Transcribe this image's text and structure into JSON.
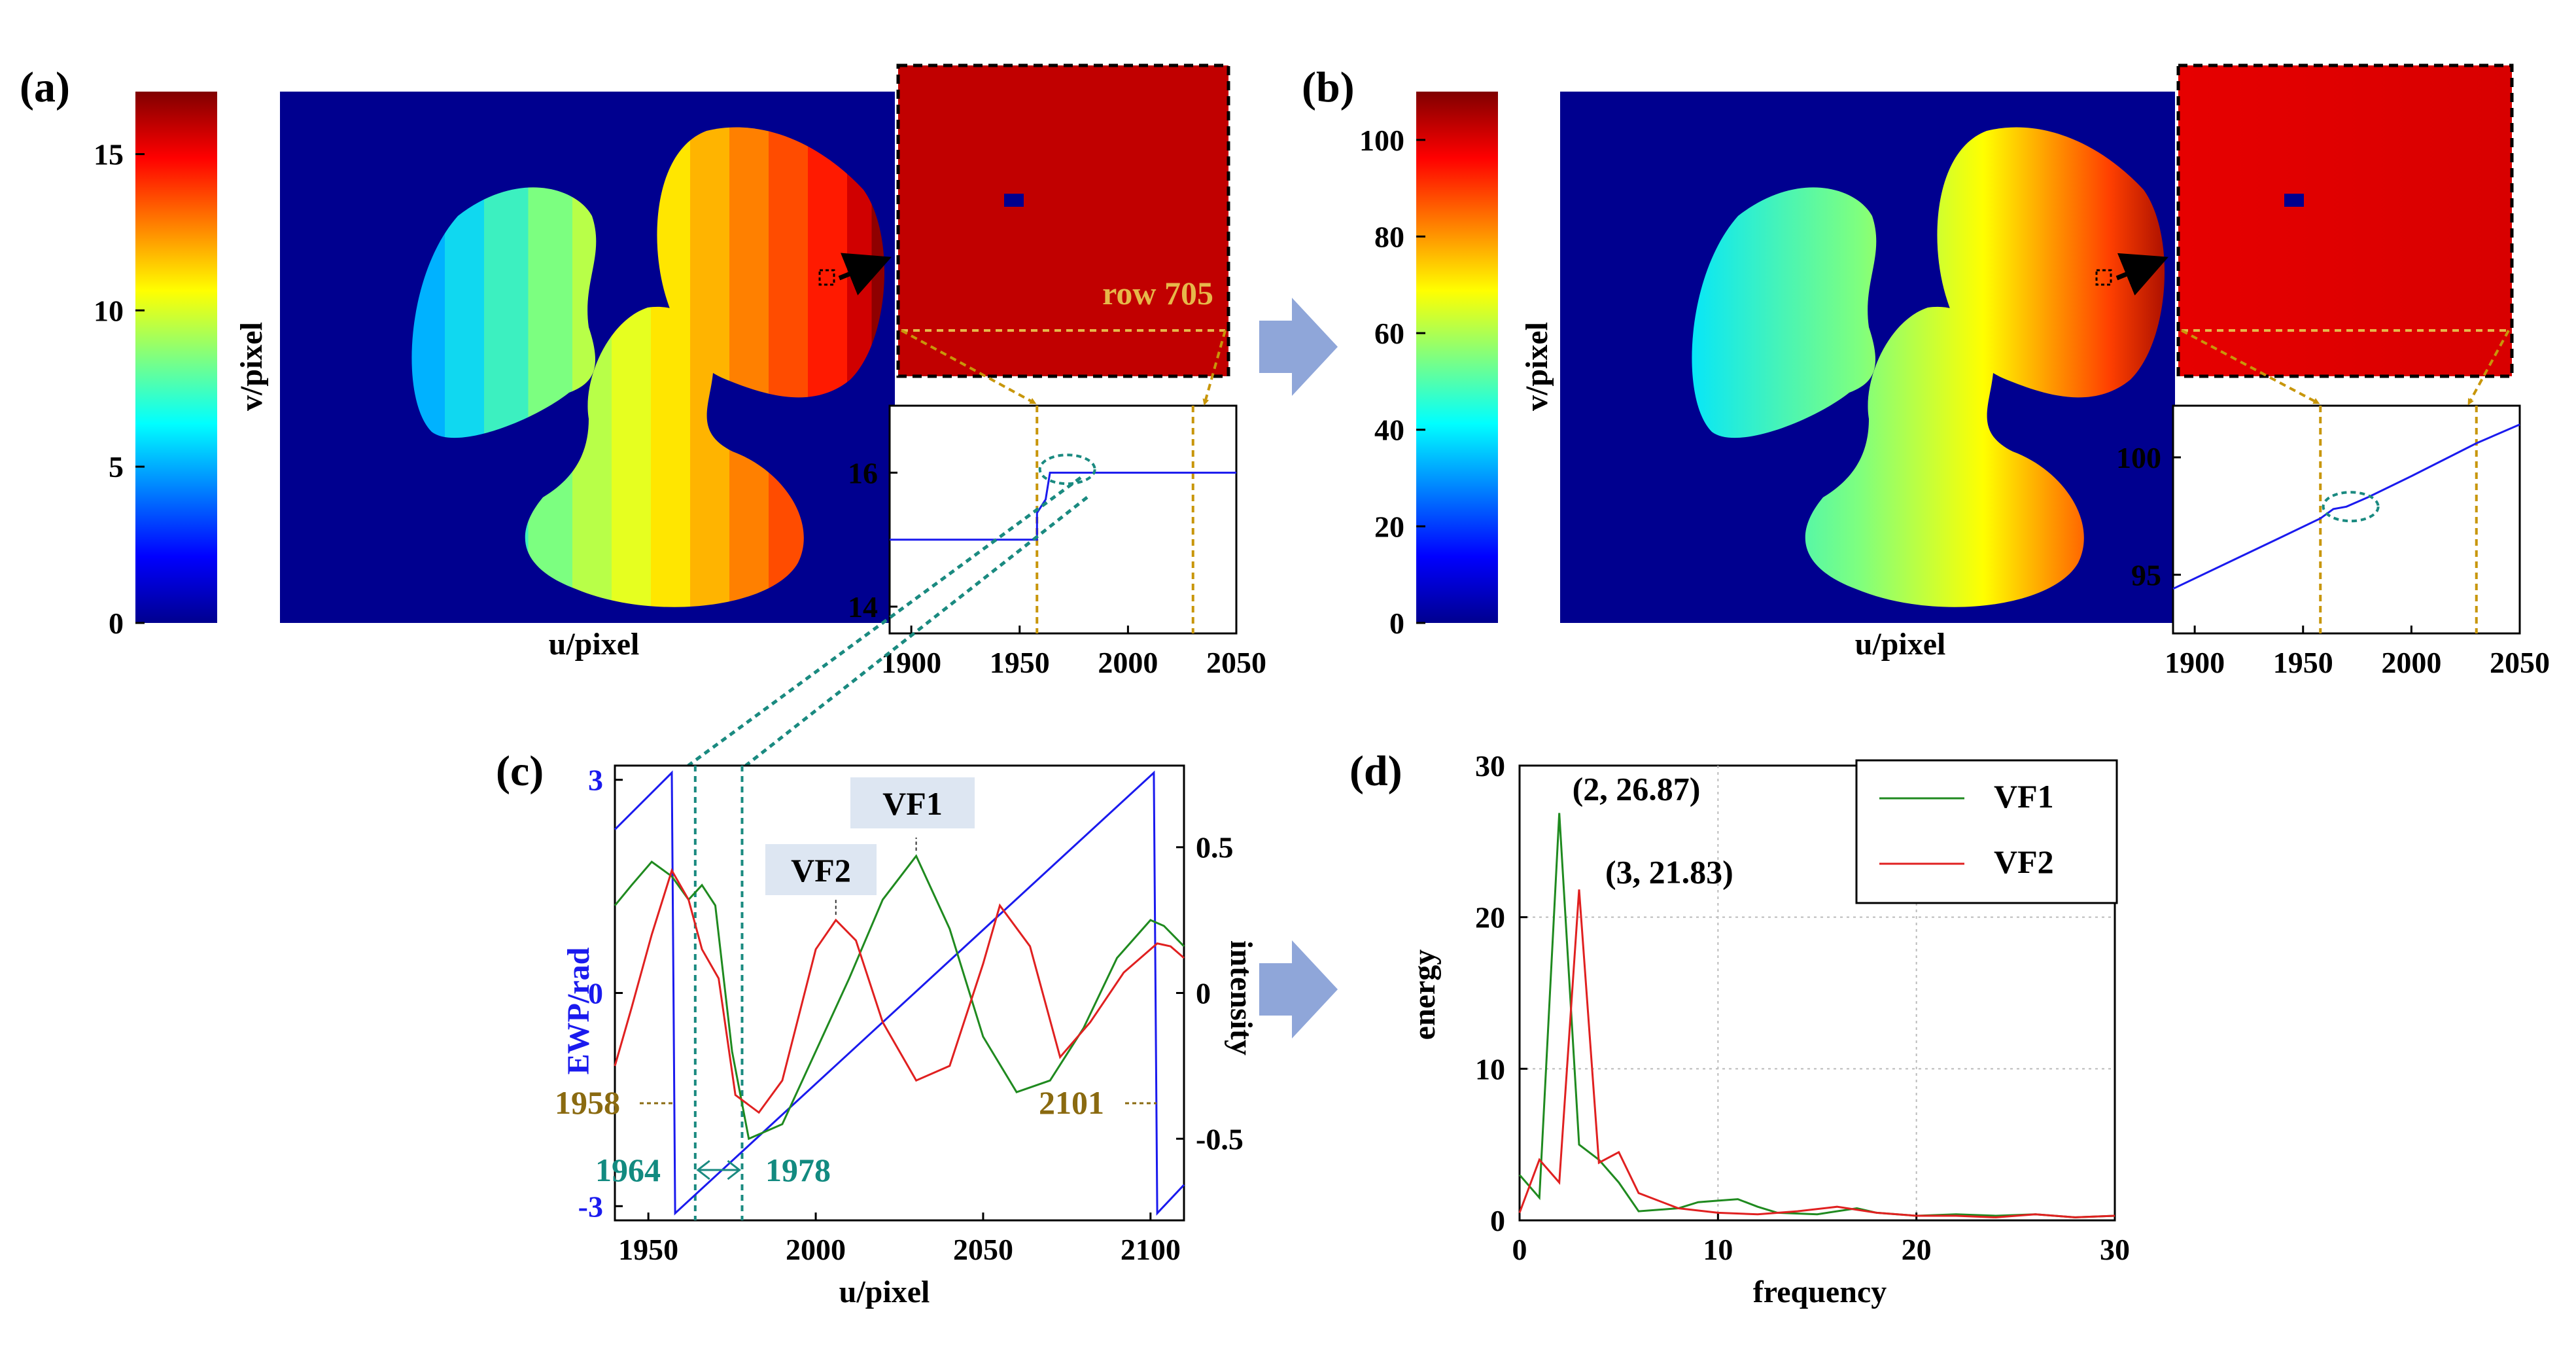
{
  "panel_labels": {
    "a": "(a)",
    "b": "(b)",
    "c": "(c)",
    "d": "(d)"
  },
  "colors": {
    "background_blue": "#00008f",
    "wrap_line": "#1a1aee",
    "guide_gold": "#c8960a",
    "guide_teal": "#1a8a80",
    "vf1": "#1f8a1f",
    "vf2": "#e02020",
    "arrow": "#8fa6d9",
    "label_box": "#dde6f2",
    "brown_text": "#8a6a10",
    "teal_text": "#128a80"
  },
  "chart_data": [
    {
      "id": "a",
      "type": "heatmap",
      "colormap": "jet",
      "colorbar": {
        "min": 0,
        "max": 17,
        "ticks": [
          0,
          5,
          10,
          15
        ]
      },
      "xlabel": "u/pixel",
      "ylabel": "v/pixel",
      "zoom_annotation": "row 705",
      "inset": {
        "type": "line",
        "x": [
          1890,
          1958,
          1958,
          1962,
          1964,
          1980,
          2050
        ],
        "y": [
          15,
          15,
          15.4,
          15.6,
          16,
          16,
          16
        ],
        "xlim": [
          1890,
          2050
        ],
        "ylim": [
          13.6,
          17
        ],
        "xticks": [
          1900,
          1950,
          2000,
          2050
        ],
        "yticks": [
          14,
          16
        ],
        "guides_x": [
          1958,
          2030
        ]
      }
    },
    {
      "id": "b",
      "type": "heatmap",
      "colormap": "jet",
      "colorbar": {
        "min": 0,
        "max": 110,
        "ticks": [
          0,
          20,
          40,
          60,
          80,
          100
        ]
      },
      "xlabel": "u/pixel",
      "ylabel": "v/pixel",
      "inset": {
        "type": "line",
        "x": [
          1890,
          1940,
          1958,
          1964,
          1970,
          1980,
          2000,
          2030,
          2050
        ],
        "y": [
          94.4,
          96.6,
          97.4,
          97.8,
          97.9,
          98.3,
          99.2,
          100.6,
          101.4
        ],
        "xlim": [
          1890,
          2050
        ],
        "ylim": [
          92.5,
          102.2
        ],
        "xticks": [
          1900,
          1950,
          2000,
          2050
        ],
        "yticks": [
          95,
          100
        ],
        "guides_x": [
          1958,
          2030
        ]
      }
    },
    {
      "id": "c",
      "type": "line",
      "xlabel": "u/pixel",
      "ylabel_left": "EWP/rad",
      "ylabel_right": "intensity",
      "xlim": [
        1940,
        2110
      ],
      "xticks": [
        1950,
        2000,
        2050,
        2100
      ],
      "ylim_left": [
        -3.2,
        3.2
      ],
      "yticks_left": [
        -3,
        0,
        3
      ],
      "ylim_right": [
        -0.78,
        0.78
      ],
      "yticks_right": [
        -0.5,
        0,
        0.5
      ],
      "ewp": {
        "x": [
          1940,
          1957,
          1957.5,
          1958,
          2101,
          2101.5,
          2102,
          2110
        ],
        "y": [
          2.3,
          3.1,
          0,
          -3.1,
          3.1,
          0,
          -3.1,
          -2.7
        ]
      },
      "series": [
        {
          "name": "VF1",
          "x": [
            1940,
            1945,
            1951,
            1957,
            1962,
            1966,
            1970,
            1975,
            1980,
            1990,
            2000,
            2010,
            2020,
            2030,
            2040,
            2050,
            2060,
            2070,
            2080,
            2090,
            2100,
            2104,
            2110
          ],
          "y": [
            0.3,
            0.37,
            0.45,
            0.4,
            0.32,
            0.37,
            0.3,
            -0.2,
            -0.5,
            -0.45,
            -0.2,
            0.05,
            0.32,
            0.47,
            0.22,
            -0.15,
            -0.34,
            -0.3,
            -0.12,
            0.12,
            0.25,
            0.23,
            0.16
          ]
        },
        {
          "name": "VF2",
          "x": [
            1940,
            1945,
            1951,
            1957,
            1962,
            1966,
            1971,
            1976,
            1983,
            1990,
            2000,
            2006,
            2012,
            2020,
            2030,
            2040,
            2050,
            2055,
            2064,
            2073,
            2082,
            2092,
            2102,
            2106,
            2110
          ],
          "y": [
            -0.25,
            -0.05,
            0.2,
            0.42,
            0.32,
            0.15,
            0.05,
            -0.35,
            -0.41,
            -0.3,
            0.15,
            0.25,
            0.18,
            -0.1,
            -0.3,
            -0.25,
            0.1,
            0.3,
            0.16,
            -0.22,
            -0.1,
            0.07,
            0.17,
            0.16,
            0.12
          ]
        }
      ],
      "annotations": {
        "vf1_label": "VF1",
        "vf2_label": "VF2",
        "u_left": "1958",
        "u_right": "2101",
        "range_left": "1964",
        "range_right": "1978"
      }
    },
    {
      "id": "d",
      "type": "line",
      "xlabel": "frequency",
      "ylabel": "energy",
      "xlim": [
        0,
        30
      ],
      "ylim": [
        0,
        30
      ],
      "xticks": [
        0,
        10,
        20,
        30
      ],
      "yticks": [
        0,
        10,
        20,
        30
      ],
      "grid": true,
      "legend_position": "top-right",
      "series": [
        {
          "name": "VF1",
          "x": [
            0,
            1,
            2,
            3,
            4,
            5,
            6,
            8,
            9,
            10,
            11,
            12,
            13,
            15,
            17,
            18,
            20,
            22,
            24,
            26,
            28,
            30
          ],
          "y": [
            3.0,
            1.5,
            26.87,
            5.0,
            4.0,
            2.5,
            0.6,
            0.8,
            1.2,
            1.3,
            1.4,
            0.9,
            0.5,
            0.4,
            0.8,
            0.5,
            0.3,
            0.4,
            0.3,
            0.4,
            0.2,
            0.3
          ]
        },
        {
          "name": "VF2",
          "x": [
            0,
            1,
            2,
            3,
            4,
            5,
            6,
            8,
            10,
            12,
            14,
            16,
            18,
            20,
            22,
            24,
            26,
            28,
            30
          ],
          "y": [
            0.5,
            4.0,
            2.5,
            21.83,
            3.8,
            4.5,
            1.8,
            0.8,
            0.5,
            0.4,
            0.6,
            0.9,
            0.5,
            0.3,
            0.3,
            0.2,
            0.4,
            0.2,
            0.3
          ]
        }
      ],
      "annotations": [
        {
          "text": "(2, 26.87)",
          "x": 2,
          "y": 26.87
        },
        {
          "text": "(3, 21.83)",
          "x": 3,
          "y": 21.83
        }
      ]
    }
  ]
}
